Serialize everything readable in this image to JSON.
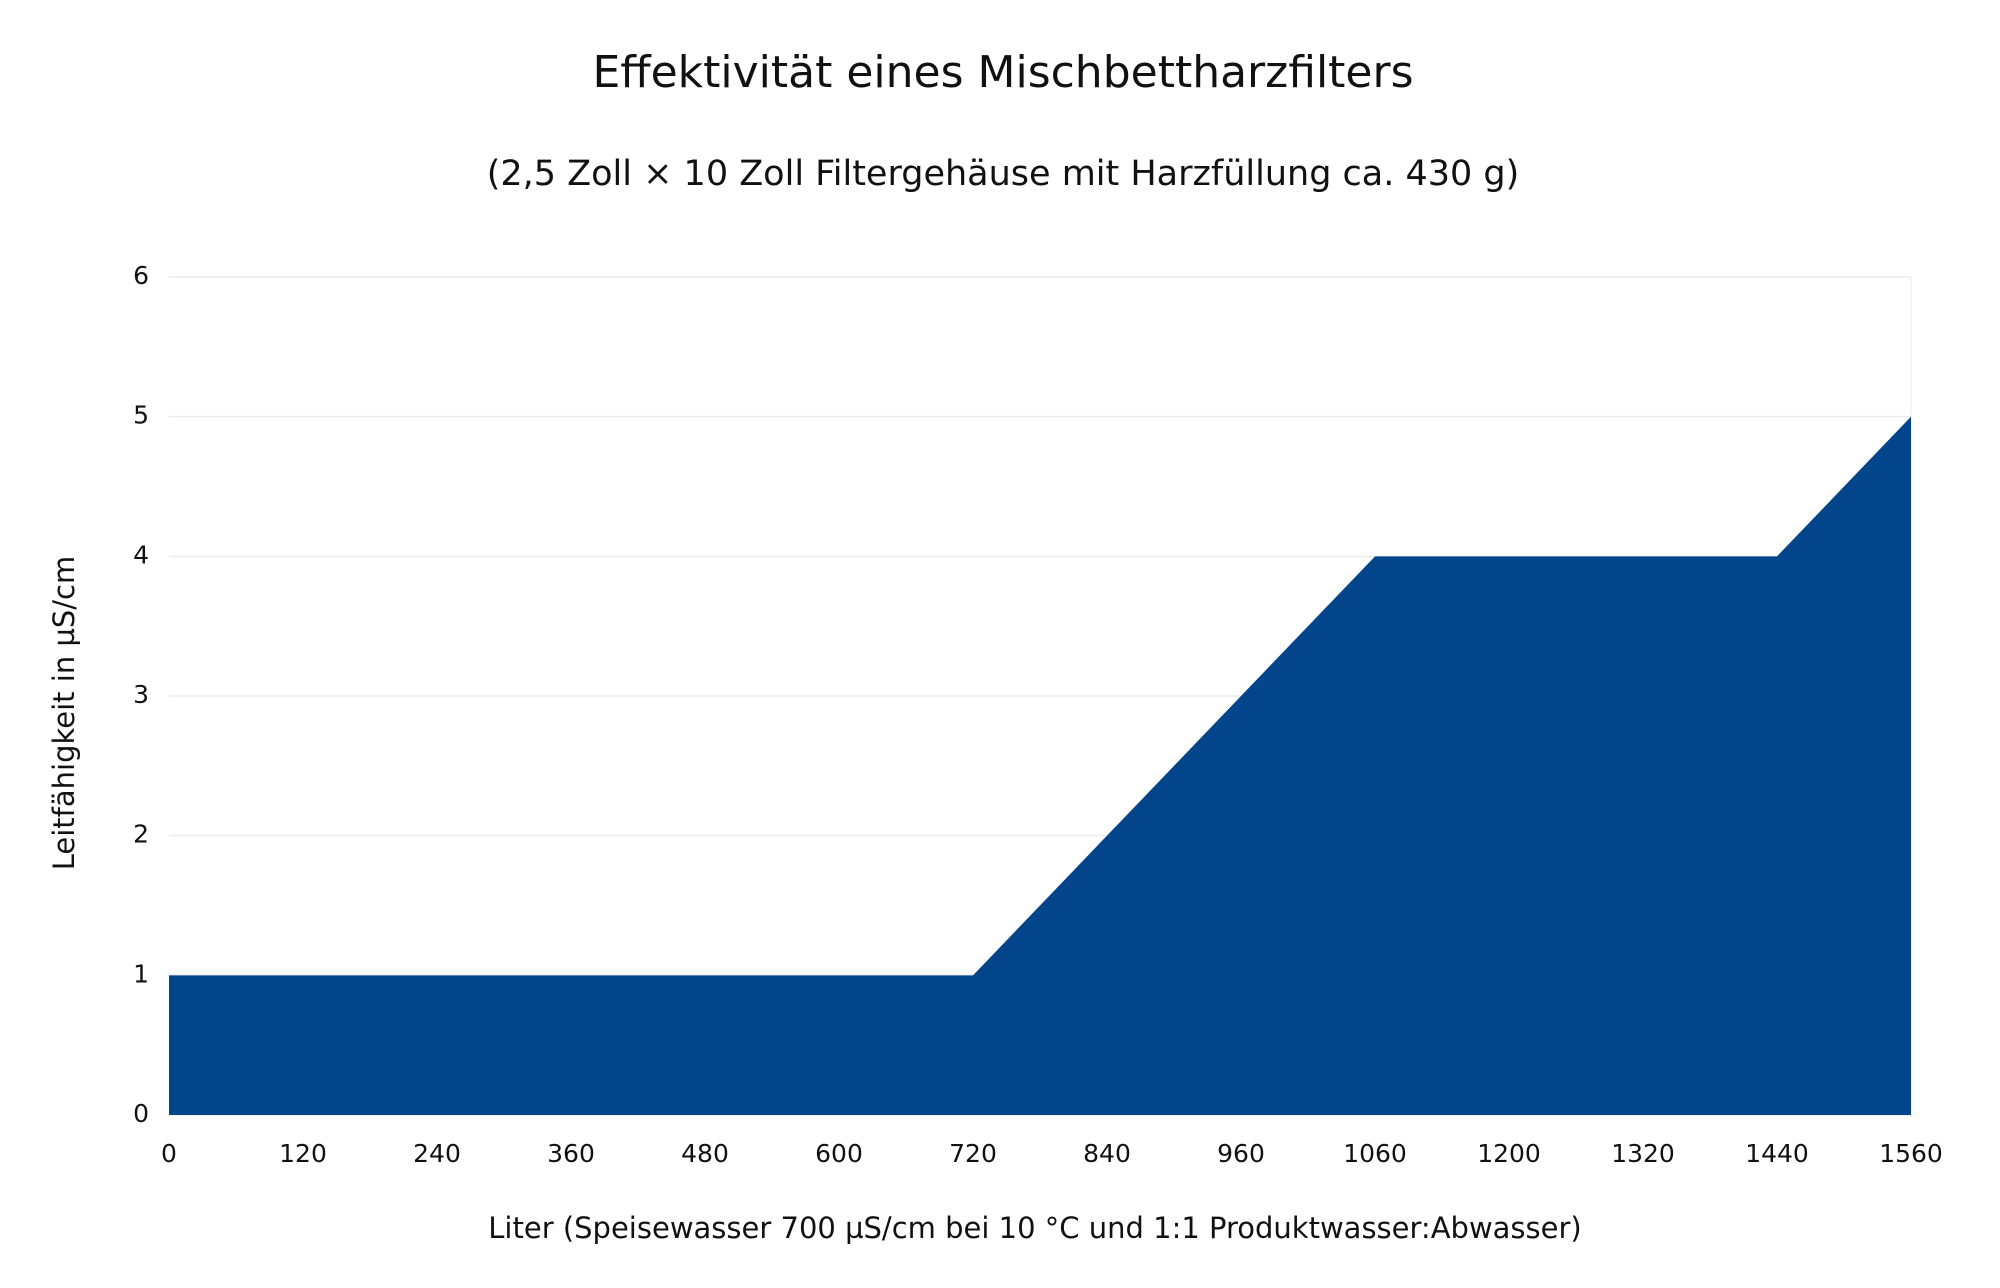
{
  "chart_data": {
    "type": "area",
    "title": "Effektivität eines Mischbettharzfilters",
    "subtitle": "(2,5 Zoll × 10 Zoll Filtergehäuse mit Harzfüllung ca. 430 g)",
    "x_label": "Liter (Speisewasser 700 µS/cm bei 10 °C und 1:1 Produktwasser:Abwasser)",
    "y_label": "Leitfähigkeit in µS/cm",
    "categories": [
      "0",
      "120",
      "240",
      "360",
      "480",
      "600",
      "720",
      "840",
      "960",
      "1060",
      "1200",
      "1320",
      "1440",
      "1560"
    ],
    "values": [
      1,
      1,
      1,
      1,
      1,
      1,
      1,
      2,
      3,
      4,
      4,
      4,
      4,
      5
    ],
    "color": "#03458a",
    "ylim": [
      0,
      6
    ],
    "yticks": [
      0,
      1,
      2,
      3,
      4,
      5,
      6
    ],
    "grid": true
  }
}
